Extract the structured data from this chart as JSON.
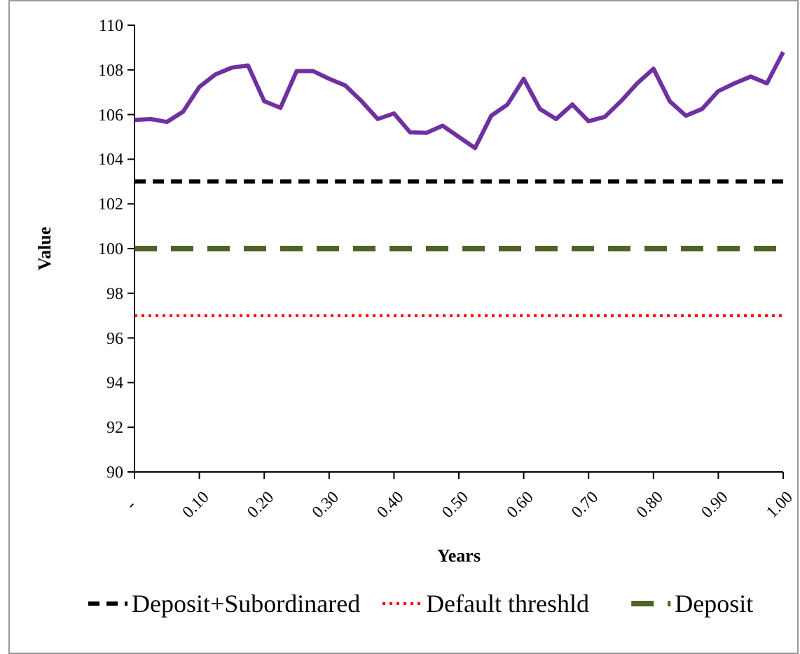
{
  "chart_data": {
    "type": "line",
    "xlabel": "Years",
    "ylabel": "Value",
    "xlim": [
      0,
      1
    ],
    "ylim": [
      90,
      110
    ],
    "xticks": [
      {
        "value": 0,
        "label": "-"
      },
      {
        "value": 0.1,
        "label": "0.10"
      },
      {
        "value": 0.2,
        "label": "0.20"
      },
      {
        "value": 0.3,
        "label": "0.30"
      },
      {
        "value": 0.4,
        "label": "0.40"
      },
      {
        "value": 0.5,
        "label": "0.50"
      },
      {
        "value": 0.6,
        "label": "0.60"
      },
      {
        "value": 0.7,
        "label": "0.70"
      },
      {
        "value": 0.8,
        "label": "0.80"
      },
      {
        "value": 0.9,
        "label": "0.90"
      },
      {
        "value": 1,
        "label": "1.00"
      }
    ],
    "yticks": [
      90,
      92,
      94,
      96,
      98,
      100,
      102,
      104,
      106,
      108,
      110
    ],
    "grid": false,
    "legend": "bottom",
    "marker": "none",
    "series": [
      {
        "color": "#7030a0",
        "line_style": "solid",
        "x": [
          0,
          0.025,
          0.05,
          0.075,
          0.1,
          0.125,
          0.15,
          0.175,
          0.2,
          0.225,
          0.25,
          0.275,
          0.3,
          0.325,
          0.35,
          0.375,
          0.4,
          0.425,
          0.45,
          0.475,
          0.5,
          0.525,
          0.55,
          0.575,
          0.6,
          0.625,
          0.65,
          0.675,
          0.7,
          0.725,
          0.75,
          0.775,
          0.8,
          0.825,
          0.85,
          0.875,
          0.9,
          0.925,
          0.95,
          0.975,
          1
        ],
        "values": [
          105.76,
          105.8,
          105.67,
          106.13,
          107.24,
          107.8,
          108.1,
          108.2,
          106.6,
          106.3,
          107.95,
          107.95,
          107.6,
          107.3,
          106.6,
          105.8,
          106.05,
          105.2,
          105.18,
          105.5,
          105.0,
          104.5,
          105.95,
          106.45,
          107.6,
          106.25,
          105.8,
          106.45,
          105.7,
          105.9,
          106.6,
          107.4,
          108.05,
          106.6,
          105.95,
          106.25,
          107.05,
          107.4,
          107.7,
          107.4,
          108.8
        ]
      },
      {
        "name": "Deposit+Subordinared",
        "color": "#000000",
        "line_style": "dashed",
        "x": [
          0,
          1
        ],
        "values": [
          103,
          103
        ]
      },
      {
        "name": "Default threshld",
        "color": "#ff0000",
        "line_style": "dotted",
        "x": [
          0,
          1
        ],
        "values": [
          97,
          97
        ]
      },
      {
        "name": "Deposit",
        "color": "#4f6228",
        "line_style": "dashed",
        "x": [
          0,
          1
        ],
        "values": [
          100,
          100
        ]
      }
    ]
  }
}
